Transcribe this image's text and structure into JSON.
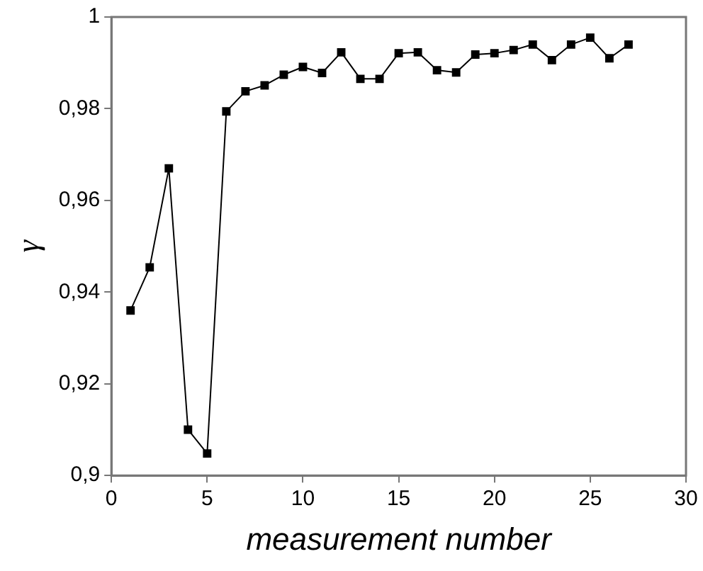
{
  "chart_data": {
    "type": "line",
    "xlabel": "measurement number",
    "ylabel": "γ",
    "x": [
      1,
      2,
      3,
      4,
      5,
      6,
      7,
      8,
      9,
      10,
      11,
      12,
      13,
      14,
      15,
      16,
      17,
      18,
      19,
      20,
      21,
      22,
      23,
      24,
      25,
      26,
      27
    ],
    "series": [
      {
        "color": "#000000",
        "values": [
          0.936,
          0.9454,
          0.967,
          0.91,
          0.9048,
          0.9794,
          0.9838,
          0.9851,
          0.9874,
          0.9891,
          0.9878,
          0.9923,
          0.9865,
          0.9865,
          0.9921,
          0.9923,
          0.9884,
          0.9879,
          0.9918,
          0.9921,
          0.9928,
          0.994,
          0.9906,
          0.994,
          0.9955,
          0.991,
          0.994
        ]
      }
    ],
    "xlim": [
      0,
      30
    ],
    "xticks": [
      0,
      5,
      10,
      15,
      20,
      25,
      30
    ],
    "ylim": [
      0.9,
      1
    ],
    "yticks": [
      {
        "value": 0.9,
        "label": "0,9"
      },
      {
        "value": 0.92,
        "label": "0,92"
      },
      {
        "value": 0.94,
        "label": "0,94"
      },
      {
        "value": 0.96,
        "label": "0,96"
      },
      {
        "value": 0.98,
        "label": "0,98"
      },
      {
        "value": 1,
        "label": "1"
      }
    ],
    "marker": "square",
    "line_style": "solid",
    "grid": false,
    "legend": false
  }
}
